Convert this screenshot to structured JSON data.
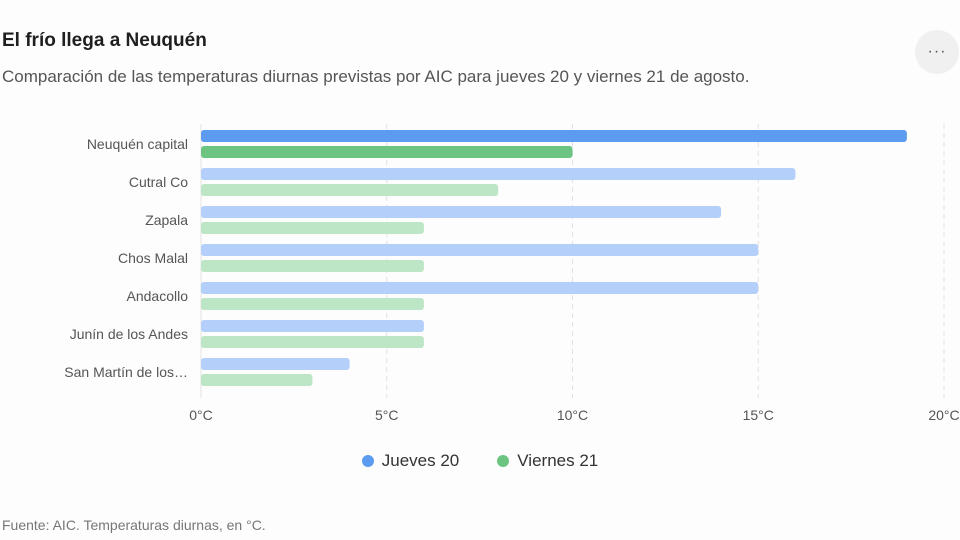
{
  "header": {
    "title": "El frío llega a Neuquén",
    "subtitle": "Comparación de las temperaturas diurnas previstas por AIC para jueves 20 y viernes 21 de agosto.",
    "menu_label": "···"
  },
  "chart_data": {
    "type": "bar",
    "orientation": "horizontal",
    "categories": [
      "Neuquén capital",
      "Cutral Co",
      "Zapala",
      "Chos Malal",
      "Andacollo",
      "Junín de los Andes",
      "San Martín de los…"
    ],
    "series": [
      {
        "name": "Jueves 20",
        "values": [
          19,
          16,
          14,
          15,
          15,
          6,
          4
        ],
        "color": "#5b9bf0",
        "muted_color": "#b3cffa"
      },
      {
        "name": "Viernes 21",
        "values": [
          10,
          8,
          6,
          6,
          6,
          6,
          3
        ],
        "color": "#6cc481",
        "muted_color": "#bde6c6"
      }
    ],
    "highlighted_category": "Neuquén capital",
    "xlim": [
      0,
      20
    ],
    "xticks": [
      0,
      5,
      10,
      15,
      20
    ],
    "xtick_labels": [
      "0°C",
      "5°C",
      "10°C",
      "15°C",
      "20°C"
    ],
    "grid": "vertical-dashed",
    "legend_position": "bottom-center"
  },
  "footer": {
    "source": "Fuente: AIC. Temperaturas diurnas, en °C."
  }
}
